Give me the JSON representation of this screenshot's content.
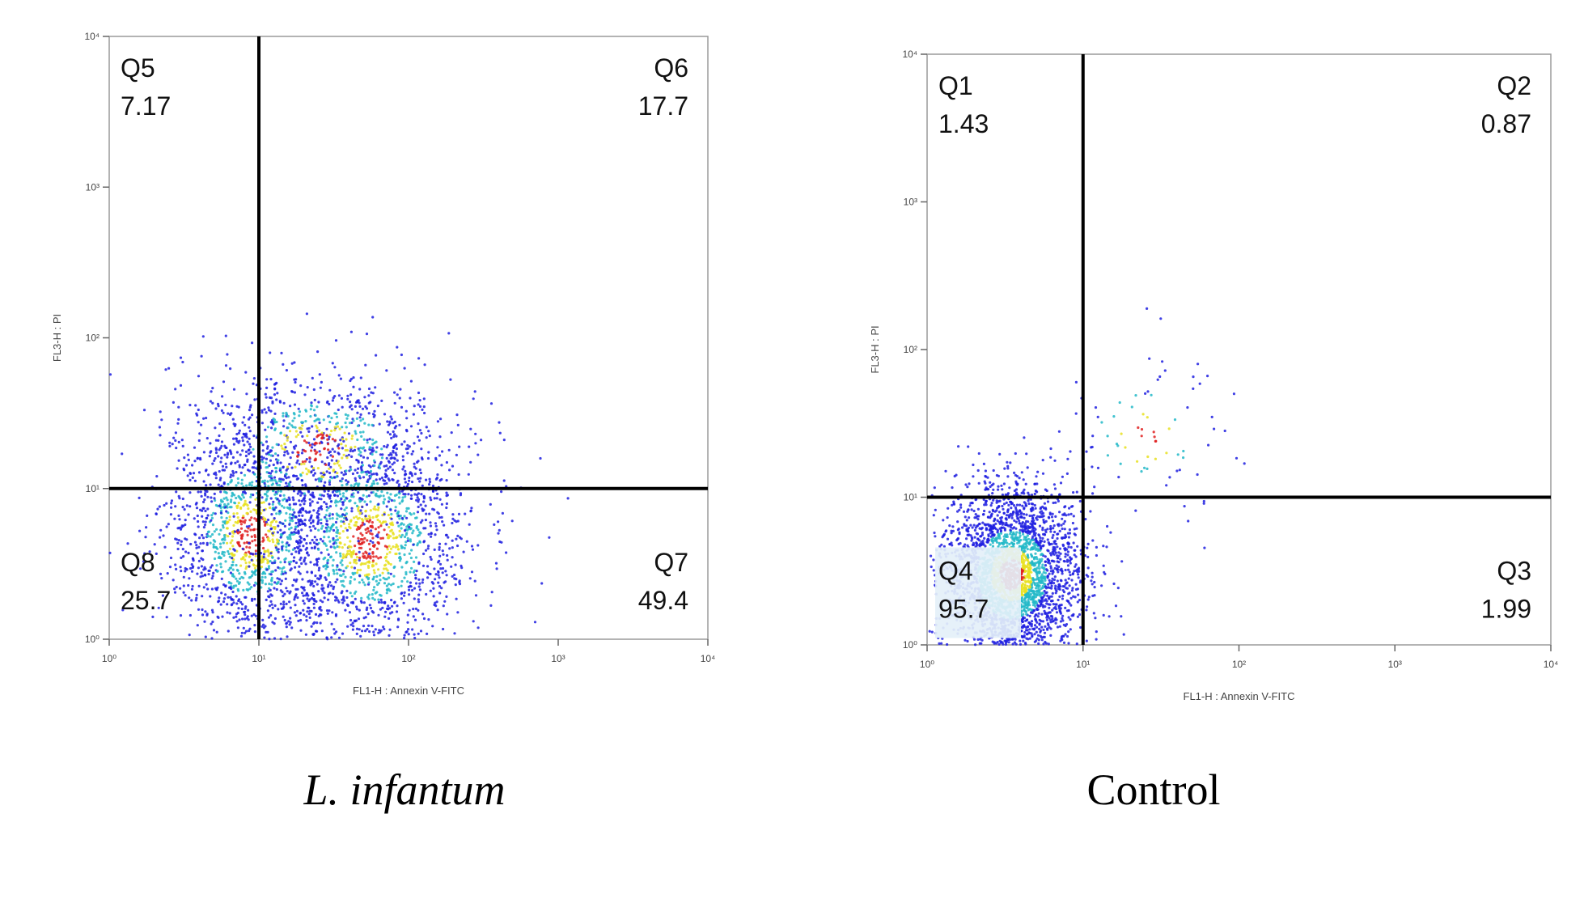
{
  "chart_data": [
    {
      "type": "scatter",
      "subtype": "flow-cytometry-density-plot",
      "caption": "L. infantum",
      "xlabel": "FL1-H : Annexin V-FITC",
      "ylabel": "FL3-H : PI",
      "xscale": "log",
      "yscale": "log",
      "xlim": [
        1,
        10000
      ],
      "ylim": [
        1,
        10000
      ],
      "xticks": [
        "10⁰",
        "10¹",
        "10²",
        "10³",
        "10⁴"
      ],
      "yticks": [
        "10⁰",
        "10¹",
        "10²",
        "10³",
        "10⁴"
      ],
      "gate": {
        "x": 10,
        "y": 10
      },
      "quadrants": [
        {
          "name": "Q5",
          "value": "7.17",
          "position": "top-left"
        },
        {
          "name": "Q6",
          "value": "17.7",
          "position": "top-right"
        },
        {
          "name": "Q8",
          "value": "25.7",
          "position": "bottom-left"
        },
        {
          "name": "Q7",
          "value": "49.4",
          "position": "bottom-right"
        }
      ],
      "clusters": [
        {
          "x": 9,
          "y": 5,
          "sx": 0.3,
          "sy": 0.4,
          "n": 1400
        },
        {
          "x": 55,
          "y": 4.5,
          "sx": 0.35,
          "sy": 0.4,
          "n": 1500
        },
        {
          "x": 25,
          "y": 18,
          "sx": 0.45,
          "sy": 0.3,
          "n": 700
        }
      ],
      "colors": {
        "low": "#1f1fe0",
        "mid": "#22b8c8",
        "high": "#e8e020",
        "peak": "#e02020",
        "gate": "#000000"
      }
    },
    {
      "type": "scatter",
      "subtype": "flow-cytometry-density-plot",
      "caption": "Control",
      "xlabel": "FL1-H : Annexin V-FITC",
      "ylabel": "FL3-H : PI",
      "xscale": "log",
      "yscale": "log",
      "xlim": [
        1,
        10000
      ],
      "ylim": [
        1,
        10000
      ],
      "xticks": [
        "10⁰",
        "10¹",
        "10²",
        "10³",
        "10⁴"
      ],
      "yticks": [
        "10⁰",
        "10¹",
        "10²",
        "10³",
        "10⁴"
      ],
      "gate": {
        "x": 10,
        "y": 10
      },
      "quadrants": [
        {
          "name": "Q1",
          "value": "1.43",
          "position": "top-left"
        },
        {
          "name": "Q2",
          "value": "0.87",
          "position": "top-right"
        },
        {
          "name": "Q4",
          "value": "95.7",
          "position": "bottom-left"
        },
        {
          "name": "Q3",
          "value": "1.99",
          "position": "bottom-right"
        }
      ],
      "clusters": [
        {
          "x": 3.5,
          "y": 3,
          "sx": 0.22,
          "sy": 0.3,
          "n": 3000
        },
        {
          "x": 25,
          "y": 25,
          "sx": 0.3,
          "sy": 0.3,
          "n": 80
        }
      ],
      "colors": {
        "low": "#1f1fe0",
        "mid": "#22b8c8",
        "high": "#e8e020",
        "peak": "#e02020",
        "gate": "#000000"
      }
    }
  ]
}
